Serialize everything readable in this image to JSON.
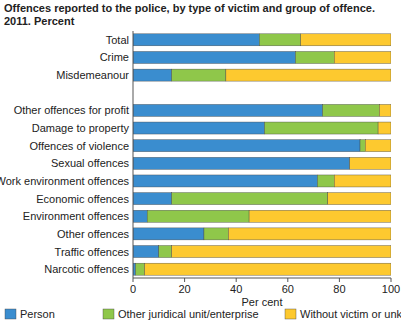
{
  "chart_data": {
    "type": "bar",
    "orientation": "horizontal",
    "stacked": true,
    "grid": false,
    "legend": "bottom",
    "title": "Offences reported to the police, by type of victim and group of offence.",
    "subtitle": "2011. Percent",
    "x_label": "Per cent",
    "categories": [
      "Total",
      "Crime",
      "Misdemeanour",
      null,
      "Other offences for profit",
      "Damage to property",
      "Offences of violence",
      "Sexual offences",
      "Work environment offences",
      "Economic offences",
      "Environment offences",
      "Other offences",
      "Traffic offences",
      "Narcotic offences"
    ],
    "series": [
      {
        "name": "Person",
        "color": "#3a8dcf",
        "values": [
          49,
          63,
          15,
          null,
          73.5,
          51,
          88,
          84,
          71.5,
          15,
          5.5,
          27.5,
          10,
          1
        ]
      },
      {
        "name": "Other juridical unit/enterprise",
        "color": "#8fc74a",
        "values": [
          16,
          15,
          21,
          null,
          22,
          44,
          2,
          0,
          6.5,
          60.5,
          39.5,
          9.5,
          5,
          3.5
        ]
      },
      {
        "name": "Without victim or unknown",
        "color": "#fdc92f",
        "values": [
          35,
          22,
          64,
          null,
          4.5,
          5,
          10,
          16,
          22,
          24.5,
          55,
          63,
          85,
          95.5
        ]
      }
    ],
    "xlim": [
      0,
      100
    ],
    "xticks": [
      0,
      20,
      40,
      60,
      80,
      100
    ]
  }
}
